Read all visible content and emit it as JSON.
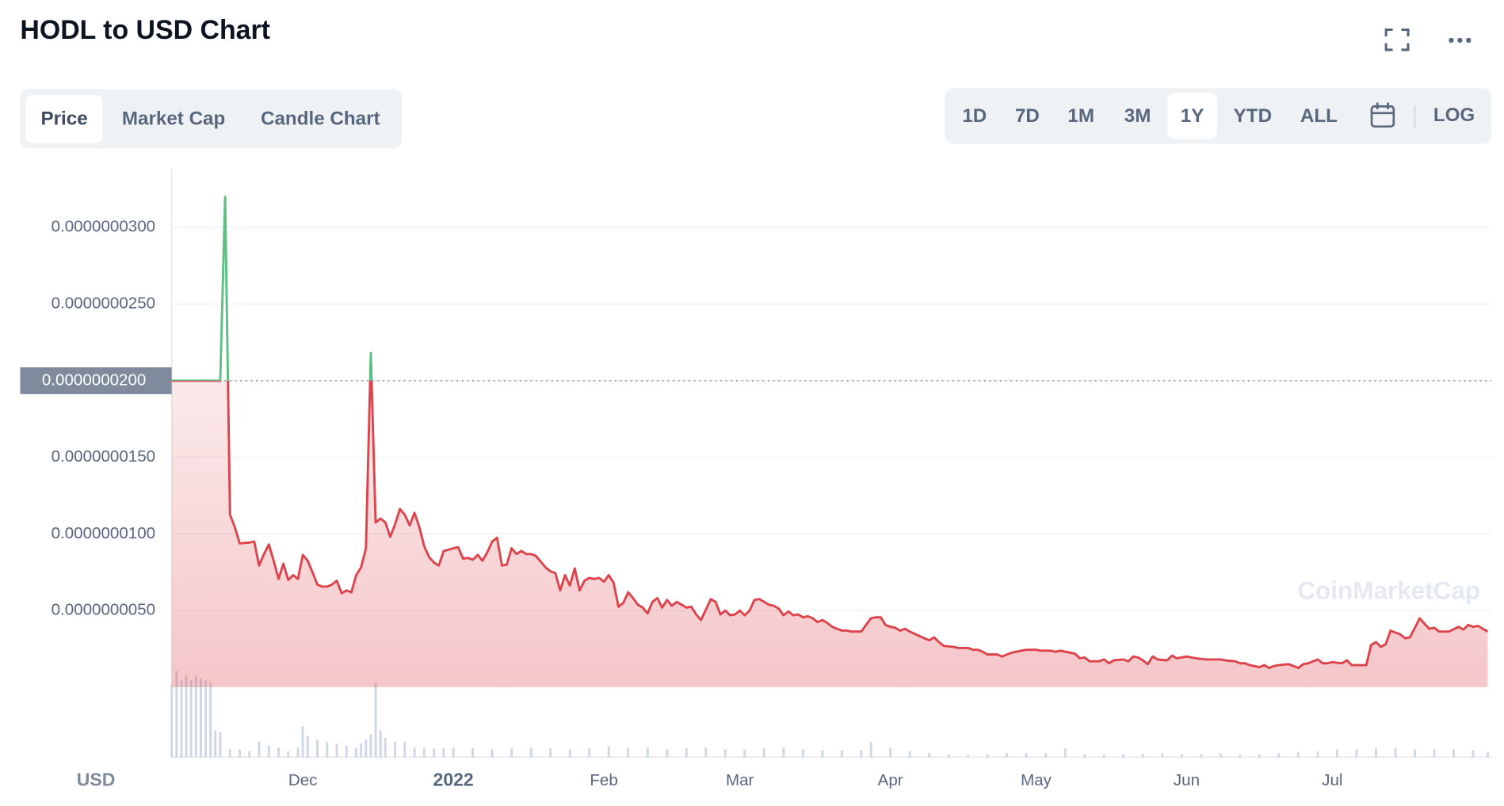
{
  "ui": {
    "title": "HODL to USD Chart",
    "tabs": [
      "Price",
      "Market Cap",
      "Candle Chart"
    ],
    "ranges": [
      "1D",
      "7D",
      "1M",
      "3M",
      "1Y",
      "YTD",
      "ALL"
    ],
    "log": "LOG",
    "currency": "USD",
    "watermark": "CoinMarketCap"
  },
  "chart_data": {
    "type": "line",
    "up_color": "#5cbf83",
    "down_color": "#dd434b",
    "ylim": [
      0,
      3.39e-08
    ],
    "yticks": [
      {
        "value": 5e-09,
        "label": "0.0000000050"
      },
      {
        "value": 1e-08,
        "label": "0.0000000100"
      },
      {
        "value": 1.5e-08,
        "label": "0.0000000150"
      },
      {
        "value": 2e-08,
        "label": "0.0000000200"
      },
      {
        "value": 2.5e-08,
        "label": "0.0000000250"
      },
      {
        "value": 3e-08,
        "label": "0.0000000300"
      }
    ],
    "reference": {
      "value": 2e-08,
      "label": "0.0000000200"
    },
    "xlim": [
      0,
      271
    ],
    "xticks": [
      {
        "value": 27,
        "label": "Dec"
      },
      {
        "value": 58,
        "label": "2022"
      },
      {
        "value": 89,
        "label": "Feb"
      },
      {
        "value": 117,
        "label": "Mar"
      },
      {
        "value": 148,
        "label": "Apr"
      },
      {
        "value": 178,
        "label": "May"
      },
      {
        "value": 209,
        "label": "Jun"
      },
      {
        "value": 239,
        "label": "Jul"
      }
    ],
    "grid": true,
    "x": [
      0,
      10,
      11,
      12,
      13,
      14,
      16,
      17,
      18,
      19,
      20,
      21,
      22,
      23,
      24,
      25,
      26,
      27,
      28,
      29,
      30,
      31,
      32,
      33,
      34,
      35,
      36,
      37,
      38,
      39,
      40,
      41,
      42,
      43,
      44,
      45,
      46,
      47,
      48,
      49,
      50,
      51,
      52,
      53,
      54,
      55,
      56,
      58,
      59,
      60,
      61,
      62,
      63,
      64,
      65,
      66,
      67,
      68,
      69,
      70,
      71,
      72,
      73,
      74,
      75,
      76,
      77,
      78,
      79,
      80,
      81,
      82,
      83,
      84,
      85,
      86,
      87,
      88,
      89,
      90,
      91,
      92,
      93,
      94,
      95,
      96,
      97,
      98,
      99,
      100,
      101,
      102,
      103,
      104,
      105,
      106,
      107,
      108,
      109,
      110,
      111,
      112,
      113,
      114,
      115,
      116,
      117,
      118,
      119,
      120,
      121,
      122,
      123,
      124,
      125,
      126,
      127,
      128,
      129,
      130,
      131,
      132,
      133,
      134,
      135,
      136,
      137,
      138,
      139,
      140,
      142,
      144,
      145,
      146,
      147,
      148,
      149,
      150,
      151,
      152,
      155,
      156,
      157,
      158,
      159,
      161,
      162,
      164,
      165,
      166,
      167,
      168,
      170,
      171,
      172,
      173,
      175,
      176,
      178,
      179,
      181,
      182,
      183,
      185,
      186,
      187,
      188,
      189,
      191,
      192,
      193,
      194,
      196,
      197,
      198,
      199,
      200,
      201,
      202,
      203,
      205,
      206,
      207,
      209,
      210,
      211,
      213,
      214,
      216,
      217,
      219,
      220,
      221,
      222,
      224,
      225,
      226,
      227,
      228,
      230,
      231,
      232,
      233,
      234,
      236,
      237,
      238,
      239,
      241,
      242,
      243,
      244,
      246,
      247,
      248,
      249,
      250,
      251,
      253,
      254,
      255,
      256,
      257,
      258,
      259,
      260,
      261,
      262,
      263,
      265,
      266,
      267,
      268,
      269,
      270,
      271
    ],
    "values": [
      2e-08,
      2e-08,
      3.2e-08,
      1.125e-08,
      1.044e-08,
      9.38e-09,
      9.44e-09,
      9.5e-09,
      7.94e-09,
      8.69e-09,
      9.31e-09,
      8.25e-09,
      7.06e-09,
      8.06e-09,
      7e-09,
      7.31e-09,
      7.06e-09,
      8.63e-09,
      8.25e-09,
      7.5e-09,
      6.69e-09,
      6.56e-09,
      6.56e-09,
      6.69e-09,
      6.94e-09,
      6.13e-09,
      6.31e-09,
      6.19e-09,
      7.31e-09,
      7.81e-09,
      9.06e-09,
      2.181e-08,
      1.075e-08,
      1.1e-08,
      1.075e-08,
      9.81e-09,
      1.063e-08,
      1.163e-08,
      1.125e-08,
      1.056e-08,
      1.138e-08,
      1.044e-08,
      9.19e-09,
      8.5e-09,
      8.13e-09,
      7.94e-09,
      8.88e-09,
      9.06e-09,
      9.13e-09,
      8.38e-09,
      8.44e-09,
      8.31e-09,
      8.63e-09,
      8.25e-09,
      8.81e-09,
      9.5e-09,
      9.75e-09,
      7.94e-09,
      8e-09,
      9.06e-09,
      8.69e-09,
      8.88e-09,
      8.69e-09,
      8.69e-09,
      8.56e-09,
      8.19e-09,
      7.81e-09,
      7.56e-09,
      7.44e-09,
      6.31e-09,
      7.31e-09,
      6.63e-09,
      7.75e-09,
      6.31e-09,
      6.94e-09,
      7.13e-09,
      7.06e-09,
      7.13e-09,
      6.88e-09,
      7.31e-09,
      6.81e-09,
      5.25e-09,
      5.5e-09,
      6.19e-09,
      5.81e-09,
      5.38e-09,
      5.19e-09,
      4.81e-09,
      5.56e-09,
      5.81e-09,
      5.19e-09,
      5.69e-09,
      5.31e-09,
      5.56e-09,
      5.38e-09,
      5.19e-09,
      5.25e-09,
      4.75e-09,
      4.38e-09,
      5.06e-09,
      5.75e-09,
      5.56e-09,
      4.75e-09,
      5e-09,
      4.69e-09,
      4.75e-09,
      5e-09,
      4.69e-09,
      5e-09,
      5.69e-09,
      5.75e-09,
      5.56e-09,
      5.38e-09,
      5.31e-09,
      5.13e-09,
      4.69e-09,
      4.94e-09,
      4.69e-09,
      4.75e-09,
      4.56e-09,
      4.63e-09,
      4.5e-09,
      4.25e-09,
      4.38e-09,
      4.19e-09,
      3.94e-09,
      3.81e-09,
      3.69e-09,
      3.69e-09,
      3.63e-09,
      3.63e-09,
      4.5e-09,
      4.56e-09,
      4.56e-09,
      4.06e-09,
      3.94e-09,
      3.88e-09,
      3.69e-09,
      3.81e-09,
      3.63e-09,
      3.19e-09,
      3.06e-09,
      3.25e-09,
      2.94e-09,
      2.69e-09,
      2.63e-09,
      2.56e-09,
      2.56e-09,
      2.44e-09,
      2.44e-09,
      2.31e-09,
      2.13e-09,
      2.13e-09,
      2e-09,
      2.13e-09,
      2.25e-09,
      2.38e-09,
      2.44e-09,
      2.44e-09,
      2.38e-09,
      2.38e-09,
      2.31e-09,
      2.38e-09,
      2.25e-09,
      2.19e-09,
      1.88e-09,
      1.94e-09,
      1.69e-09,
      1.69e-09,
      1.81e-09,
      1.56e-09,
      1.75e-09,
      1.81e-09,
      1.69e-09,
      2e-09,
      1.94e-09,
      1.75e-09,
      1.5e-09,
      2e-09,
      1.81e-09,
      1.75e-09,
      2.06e-09,
      1.88e-09,
      2e-09,
      1.94e-09,
      1.88e-09,
      1.81e-09,
      1.81e-09,
      1.81e-09,
      1.75e-09,
      1.69e-09,
      1.56e-09,
      1.56e-09,
      1.44e-09,
      1.31e-09,
      1.44e-09,
      1.25e-09,
      1.38e-09,
      1.44e-09,
      1.5e-09,
      1.38e-09,
      1.25e-09,
      1.5e-09,
      1.56e-09,
      1.81e-09,
      1.56e-09,
      1.56e-09,
      1.63e-09,
      1.56e-09,
      1.75e-09,
      1.44e-09,
      1.44e-09,
      1.44e-09,
      2.75e-09,
      2.94e-09,
      2.63e-09,
      2.81e-09,
      3.69e-09,
      3.44e-09,
      3.19e-09,
      3.25e-09,
      3.88e-09,
      4.5e-09,
      4.13e-09,
      3.81e-09,
      3.88e-09,
      3.63e-09,
      3.63e-09,
      3.63e-09,
      3.94e-09,
      3.75e-09,
      4.06e-09,
      3.94e-09,
      4e-09,
      3.81e-09,
      3.63e-09
    ],
    "volume": {
      "color": "#cfd6e4",
      "x": [
        0,
        1,
        2,
        3,
        4,
        5,
        6,
        7,
        8,
        9,
        10,
        12,
        14,
        16,
        18,
        20,
        22,
        24,
        26,
        27,
        28,
        30,
        32,
        34,
        36,
        38,
        39,
        40,
        41,
        42,
        43,
        44,
        46,
        48,
        50,
        52,
        54,
        56,
        58,
        62,
        66,
        70,
        74,
        78,
        82,
        86,
        90,
        94,
        98,
        102,
        106,
        110,
        114,
        118,
        122,
        126,
        130,
        134,
        138,
        142,
        144,
        148,
        152,
        156,
        160,
        164,
        168,
        172,
        176,
        180,
        184,
        188,
        192,
        196,
        200,
        204,
        208,
        212,
        216,
        220,
        224,
        228,
        232,
        236,
        240,
        244,
        248,
        252,
        256,
        260,
        264,
        268,
        271
      ],
      "values": [
        75,
        90,
        80,
        85,
        80,
        85,
        82,
        80,
        78,
        28,
        26,
        8,
        8,
        6,
        16,
        12,
        10,
        6,
        10,
        32,
        22,
        18,
        16,
        14,
        12,
        10,
        14,
        18,
        24,
        78,
        28,
        20,
        16,
        16,
        10,
        10,
        9,
        9,
        10,
        9,
        8,
        9,
        10,
        9,
        8,
        9,
        11,
        10,
        10,
        8,
        9,
        10,
        8,
        8,
        9,
        10,
        8,
        7,
        7,
        7,
        16,
        10,
        6,
        4,
        3,
        3,
        3,
        4,
        4,
        4,
        9,
        3,
        3,
        3,
        3,
        4,
        3,
        3,
        4,
        3,
        3,
        4,
        5,
        6,
        8,
        8,
        9,
        10,
        8,
        8,
        8,
        7,
        5
      ]
    }
  }
}
